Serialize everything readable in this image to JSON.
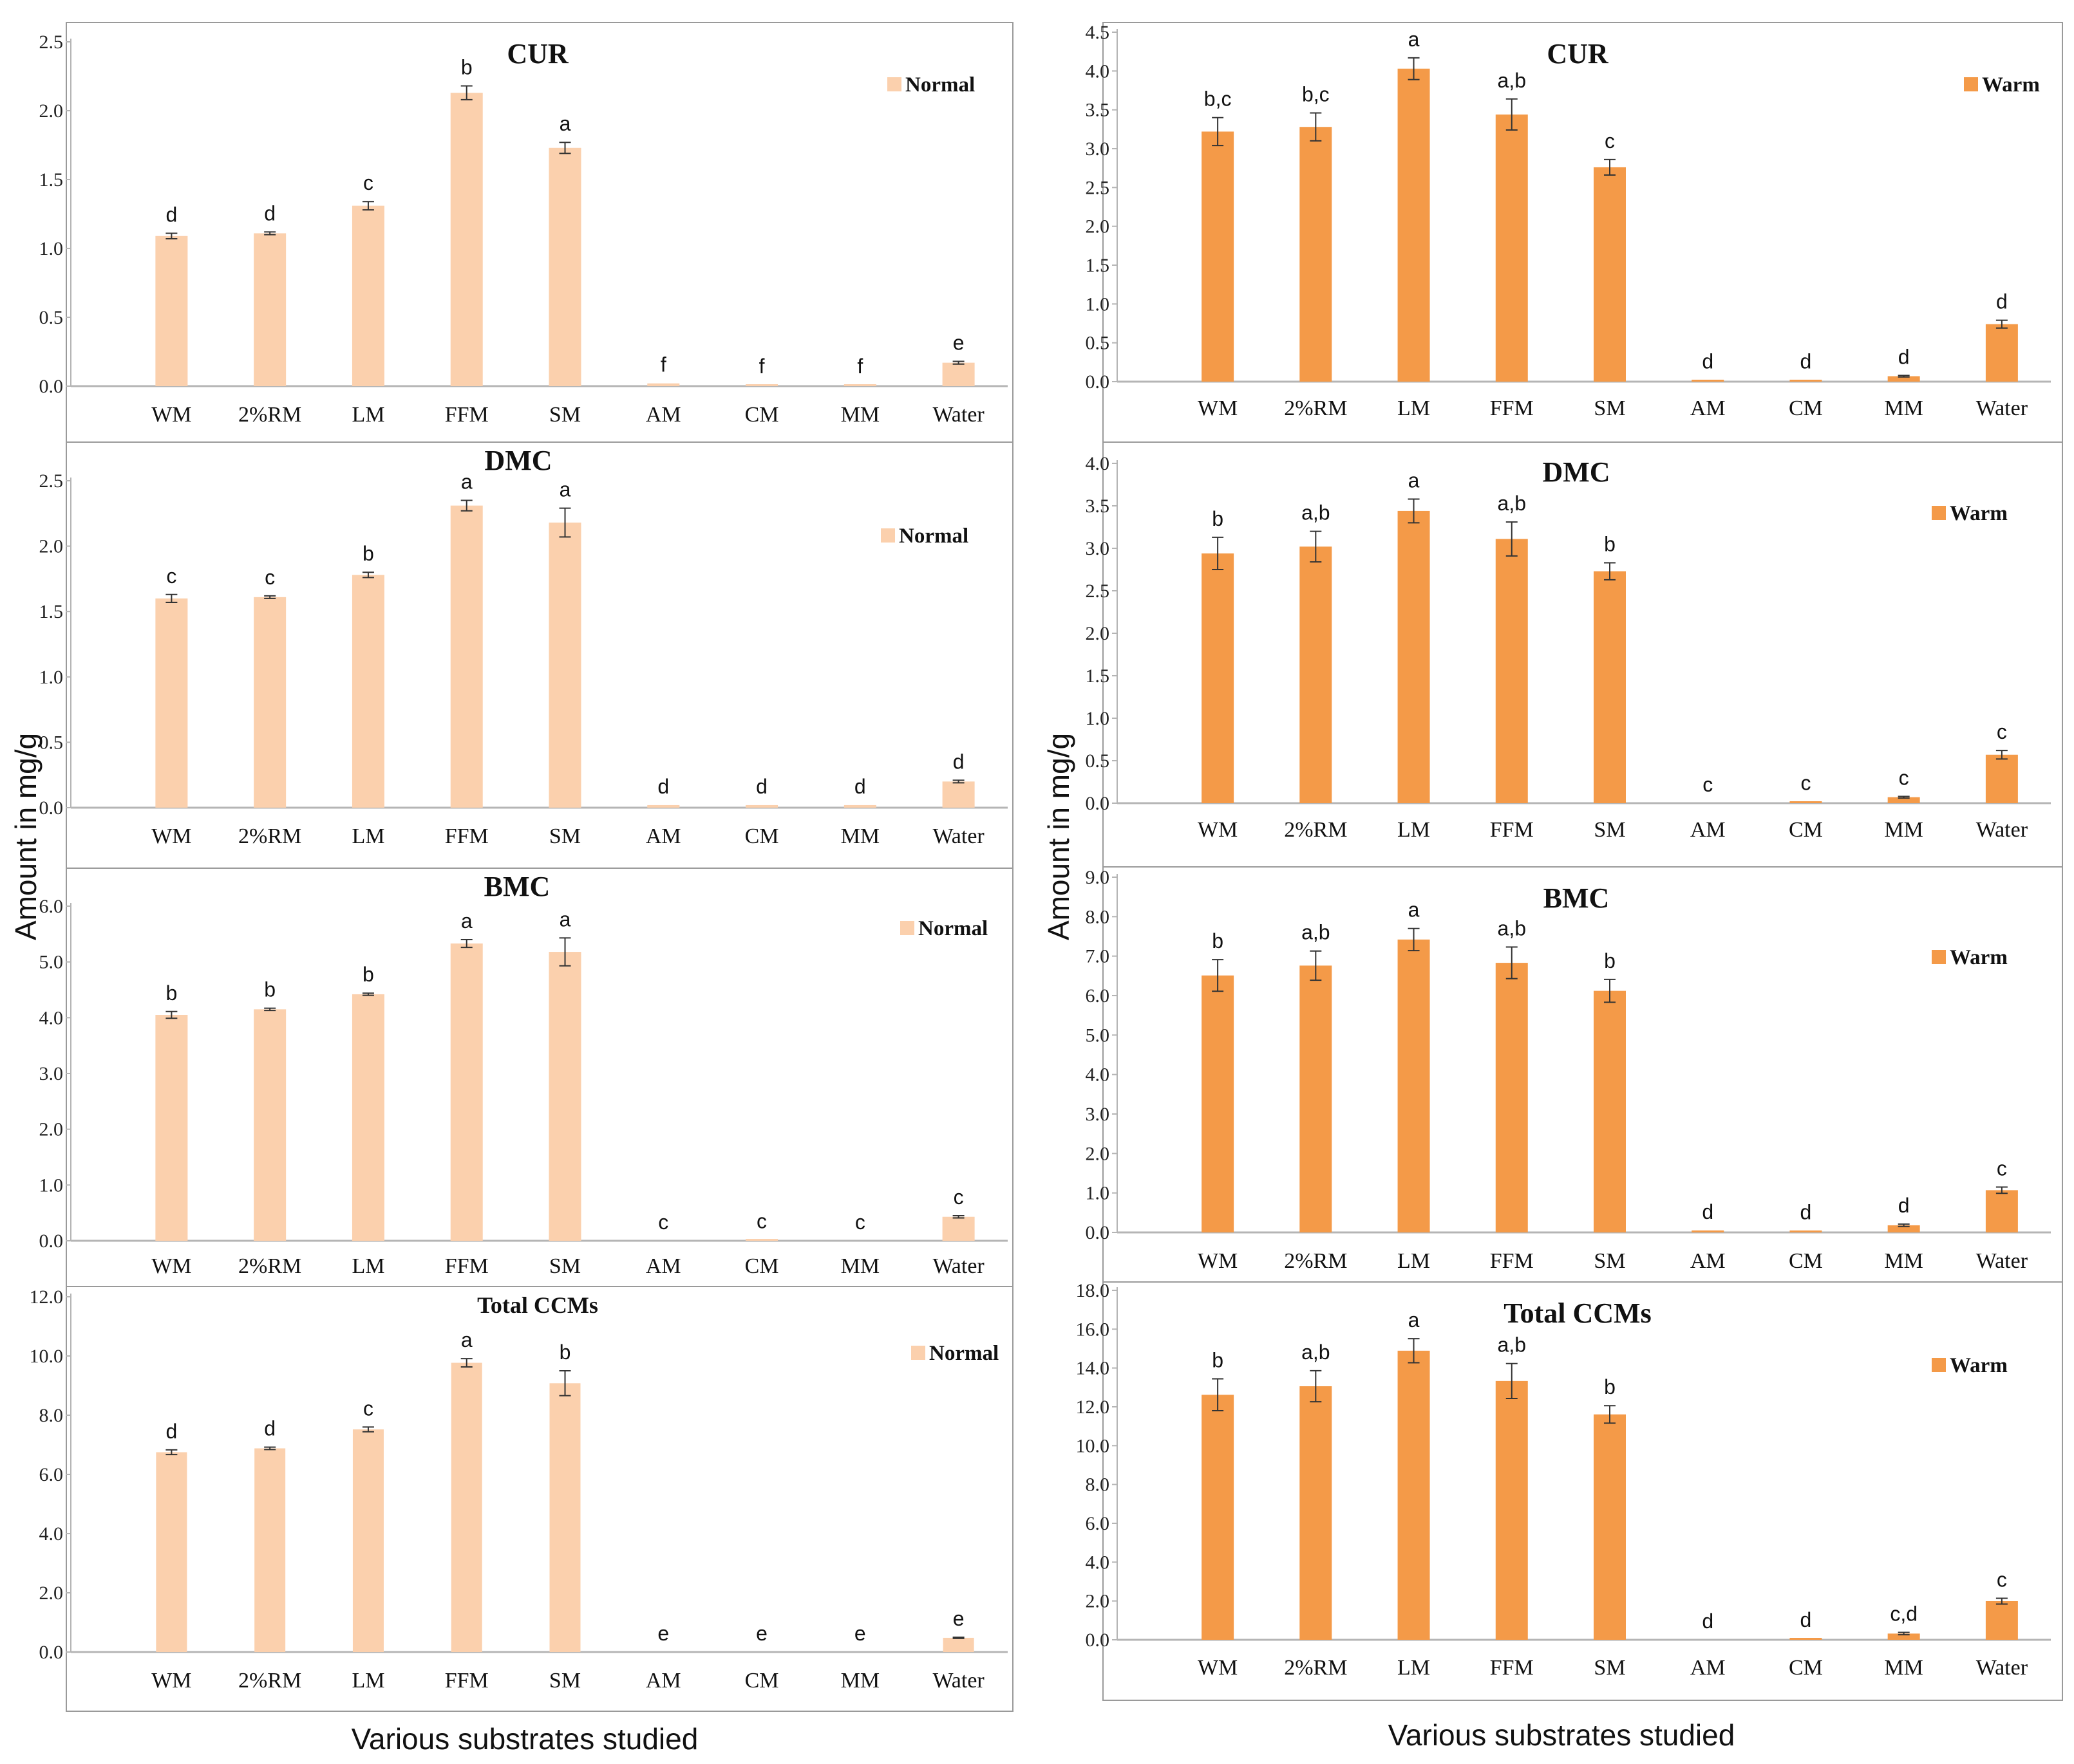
{
  "figure": {
    "ylabel": "Amount in mg/g",
    "xlabel": "Various substrates studied"
  },
  "colors": {
    "normal": "#fbd0ad",
    "warm": "#f49a48",
    "error": "#333333",
    "axis": "#b5b5b5"
  },
  "chart_data": [
    {
      "type": "bar",
      "panel": "left-1",
      "title": "CUR",
      "legend": "Normal",
      "legend_position": "top-right",
      "categories": [
        "WM",
        "2%RM",
        "LM",
        "FFM",
        "SM",
        "AM",
        "CM",
        "MM",
        "Water"
      ],
      "values": [
        1.09,
        1.11,
        1.31,
        2.13,
        1.73,
        0.02,
        0.01,
        0.01,
        0.17
      ],
      "errors": [
        0.02,
        0.01,
        0.03,
        0.05,
        0.04,
        0,
        0,
        0,
        0.01
      ],
      "labels": [
        "d",
        "d",
        "c",
        "b",
        "a",
        "f",
        "f",
        "f",
        "e"
      ],
      "ylim": [
        0,
        2.5
      ],
      "yticks": [
        "0.0",
        "0.5",
        "1.0",
        "1.5",
        "2.0",
        "2.5"
      ]
    },
    {
      "type": "bar",
      "panel": "left-2",
      "title": "DMC",
      "legend": "Normal",
      "legend_position": "top-right",
      "categories": [
        "WM",
        "2%RM",
        "LM",
        "FFM",
        "SM",
        "AM",
        "CM",
        "MM",
        "Water"
      ],
      "values": [
        1.6,
        1.61,
        1.78,
        2.31,
        2.18,
        0.02,
        0.02,
        0.02,
        0.2
      ],
      "errors": [
        0.03,
        0.01,
        0.02,
        0.04,
        0.11,
        0,
        0,
        0,
        0.01
      ],
      "labels": [
        "c",
        "c",
        "b",
        "a",
        "a",
        "d",
        "d",
        "d",
        "d"
      ],
      "ylim": [
        0,
        2.5
      ],
      "yticks": [
        "0.0",
        "0.5",
        "1.0",
        "1.5",
        "2.0",
        "2.5"
      ]
    },
    {
      "type": "bar",
      "panel": "left-3",
      "title": "BMC",
      "legend": "Normal",
      "legend_position": "top-right",
      "categories": [
        "WM",
        "2%RM",
        "LM",
        "FFM",
        "SM",
        "AM",
        "CM",
        "MM",
        "Water"
      ],
      "values": [
        4.05,
        4.15,
        4.42,
        5.33,
        5.18,
        0.0,
        0.02,
        0.0,
        0.43
      ],
      "errors": [
        0.06,
        0.02,
        0.02,
        0.07,
        0.25,
        0,
        0,
        0,
        0.02
      ],
      "labels": [
        "b",
        "b",
        "b",
        "a",
        "a",
        "c",
        "c",
        "c",
        "c"
      ],
      "ylim": [
        0,
        6
      ],
      "yticks": [
        "0.0",
        "1.0",
        "2.0",
        "3.0",
        "4.0",
        "5.0",
        "6.0"
      ]
    },
    {
      "type": "bar",
      "panel": "left-4",
      "title": "Total CCMs",
      "legend": "Normal",
      "legend_position": "top-right",
      "categories": [
        "WM",
        "2%RM",
        "LM",
        "FFM",
        "SM",
        "AM",
        "CM",
        "MM",
        "Water"
      ],
      "values": [
        6.75,
        6.88,
        7.52,
        9.77,
        9.08,
        0.0,
        0.0,
        0.0,
        0.48
      ],
      "errors": [
        0.08,
        0.04,
        0.08,
        0.14,
        0.42,
        0,
        0,
        0,
        0.02
      ],
      "labels": [
        "d",
        "d",
        "c",
        "a",
        "b",
        "e",
        "e",
        "e",
        "e"
      ],
      "ylim": [
        0,
        12
      ],
      "yticks": [
        "0.0",
        "2.0",
        "4.0",
        "6.0",
        "8.0",
        "10.0",
        "12.0"
      ]
    },
    {
      "type": "bar",
      "panel": "right-1",
      "title": "CUR",
      "legend": "Warm",
      "legend_position": "top-right",
      "categories": [
        "WM",
        "2%RM",
        "LM",
        "FFM",
        "SM",
        "AM",
        "CM",
        "MM",
        "Water"
      ],
      "values": [
        3.22,
        3.28,
        4.03,
        3.44,
        2.76,
        0.02,
        0.02,
        0.07,
        0.74
      ],
      "errors": [
        0.18,
        0.18,
        0.14,
        0.2,
        0.1,
        0,
        0,
        0.01,
        0.05
      ],
      "labels": [
        "b,c",
        "b,c",
        "a",
        "a,b",
        "c",
        "d",
        "d",
        "d",
        "d"
      ],
      "ylim": [
        0,
        4.5
      ],
      "yticks": [
        "0.0",
        "0.5",
        "1.0",
        "1.5",
        "2.0",
        "2.5",
        "3.0",
        "3.5",
        "4.0",
        "4.5"
      ]
    },
    {
      "type": "bar",
      "panel": "right-2",
      "title": "DMC",
      "legend": "Warm",
      "legend_position": "top-right",
      "categories": [
        "WM",
        "2%RM",
        "LM",
        "FFM",
        "SM",
        "AM",
        "CM",
        "MM",
        "Water"
      ],
      "values": [
        2.94,
        3.02,
        3.44,
        3.11,
        2.73,
        0.0,
        0.02,
        0.07,
        0.57
      ],
      "errors": [
        0.19,
        0.18,
        0.14,
        0.2,
        0.1,
        0,
        0,
        0.01,
        0.05
      ],
      "labels": [
        "b",
        "a,b",
        "a",
        "a,b",
        "b",
        "c",
        "c",
        "c",
        "c"
      ],
      "ylim": [
        0,
        4
      ],
      "yticks": [
        "0.0",
        "0.5",
        "1.0",
        "1.5",
        "2.0",
        "2.5",
        "3.0",
        "3.5",
        "4.0"
      ]
    },
    {
      "type": "bar",
      "panel": "right-3",
      "title": "BMC",
      "legend": "Warm",
      "legend_position": "top-right",
      "categories": [
        "WM",
        "2%RM",
        "LM",
        "FFM",
        "SM",
        "AM",
        "CM",
        "MM",
        "Water"
      ],
      "values": [
        6.51,
        6.76,
        7.42,
        6.83,
        6.12,
        0.05,
        0.04,
        0.18,
        1.07
      ],
      "errors": [
        0.4,
        0.37,
        0.28,
        0.4,
        0.29,
        0,
        0,
        0.03,
        0.08
      ],
      "labels": [
        "b",
        "a,b",
        "a",
        "a,b",
        "b",
        "d",
        "d",
        "d",
        "c"
      ],
      "ylim": [
        0,
        9
      ],
      "yticks": [
        "0.0",
        "1.0",
        "2.0",
        "3.0",
        "4.0",
        "5.0",
        "6.0",
        "7.0",
        "8.0",
        "9.0"
      ]
    },
    {
      "type": "bar",
      "panel": "right-4",
      "title": "Total CCMs",
      "legend": "Warm",
      "legend_position": "top-right",
      "categories": [
        "WM",
        "2%RM",
        "LM",
        "FFM",
        "SM",
        "AM",
        "CM",
        "MM",
        "Water"
      ],
      "values": [
        12.62,
        13.06,
        14.89,
        13.33,
        11.61,
        0.0,
        0.06,
        0.32,
        1.99
      ],
      "errors": [
        0.82,
        0.8,
        0.62,
        0.9,
        0.45,
        0,
        0,
        0.06,
        0.15
      ],
      "labels": [
        "b",
        "a,b",
        "a",
        "a,b",
        "b",
        "d",
        "d",
        "c,d",
        "c"
      ],
      "ylim": [
        0,
        18
      ],
      "yticks": [
        "0.0",
        "2.0",
        "4.0",
        "6.0",
        "8.0",
        "10.0",
        "12.0",
        "14.0",
        "16.0",
        "18.0"
      ]
    }
  ]
}
